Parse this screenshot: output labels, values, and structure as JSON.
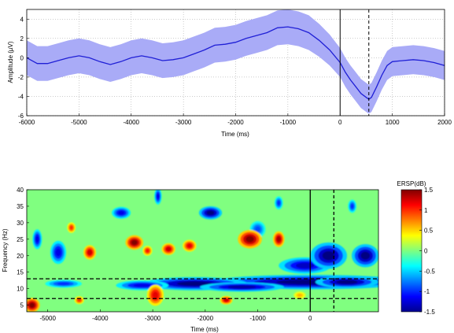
{
  "chart_data": [
    {
      "type": "line",
      "title": "",
      "xlabel": "Time (ms)",
      "ylabel": "Amplitude (µV)",
      "xlim": [
        -6000,
        2000
      ],
      "ylim": [
        -6,
        5
      ],
      "xticks": [
        -6000,
        -5000,
        -4000,
        -3000,
        -2000,
        -1000,
        0,
        1000,
        2000
      ],
      "yticks": [
        -6,
        -4,
        -2,
        0,
        2,
        4
      ],
      "grid": true,
      "series": [
        {
          "x": [
            -6000,
            -5800,
            -5600,
            -5400,
            -5200,
            -5000,
            -4800,
            -4600,
            -4400,
            -4200,
            -4000,
            -3800,
            -3600,
            -3400,
            -3200,
            -3000,
            -2800,
            -2600,
            -2400,
            -2200,
            -2000,
            -1800,
            -1600,
            -1400,
            -1200,
            -1000,
            -800,
            -600,
            -400,
            -200,
            0,
            100,
            200,
            300,
            400,
            500,
            550,
            600,
            700,
            800,
            900,
            1000,
            1200,
            1400,
            1600,
            1800,
            2000
          ],
          "mean": [
            0,
            -0.6,
            -0.6,
            -0.3,
            0,
            0.2,
            0,
            -0.4,
            -0.7,
            -0.4,
            0,
            0.2,
            0,
            -0.3,
            -0.2,
            0,
            0.4,
            0.8,
            1.3,
            1.4,
            1.6,
            2,
            2.3,
            2.6,
            3.1,
            3.2,
            3,
            2.6,
            1.8,
            0.8,
            -0.5,
            -1.5,
            -2.3,
            -3,
            -3.7,
            -4.1,
            -4.3,
            -4.1,
            -3,
            -1.8,
            -0.8,
            -0.4,
            -0.3,
            -0.2,
            -0.3,
            -0.5,
            -0.8
          ],
          "halfwidth": [
            1.8,
            1.8,
            1.8,
            1.8,
            1.8,
            1.8,
            1.8,
            1.8,
            1.8,
            1.8,
            1.8,
            1.8,
            1.8,
            1.8,
            1.8,
            1.8,
            1.8,
            1.8,
            1.8,
            1.8,
            1.8,
            1.8,
            1.8,
            1.8,
            1.8,
            1.8,
            1.8,
            1.8,
            1.7,
            1.6,
            1.5,
            1.5,
            1.5,
            1.5,
            1.5,
            1.5,
            1.5,
            1.5,
            1.5,
            1.5,
            1.5,
            1.5,
            1.5,
            1.5,
            1.5,
            1.5,
            1.5
          ]
        }
      ],
      "vlines": [
        {
          "x": 0,
          "style": "solid"
        },
        {
          "x": 550,
          "style": "dashed"
        }
      ],
      "colors": {
        "line": "#1f1fd6",
        "band": "#a9abf7"
      }
    },
    {
      "type": "heatmap",
      "title": "",
      "xlabel": "Time (ms)",
      "ylabel": "Frequency (Hz)",
      "xlim": [
        -5400,
        1300
      ],
      "ylim": [
        3,
        40
      ],
      "xticks": [
        -5000,
        -4000,
        -3000,
        -2000,
        -1000,
        0
      ],
      "yticks": [
        5,
        10,
        15,
        20,
        25,
        30,
        35,
        40
      ],
      "background_value": 0,
      "colorbar": {
        "label": "ERSP(dB)",
        "min": -1.5,
        "max": 1.5,
        "ticks": [
          -1.5,
          -1,
          -0.5,
          0,
          0.5,
          1,
          1.5
        ]
      },
      "hlines": [
        {
          "y": 13,
          "style": "dashed"
        },
        {
          "y": 7,
          "style": "dashed"
        }
      ],
      "vlines": [
        {
          "x": 0,
          "style": "solid"
        },
        {
          "x": 450,
          "style": "dashed"
        }
      ],
      "blobs": [
        {
          "x": 0,
          "y": 12,
          "rx": 1900,
          "ry": 2.2,
          "v": -1.5
        },
        {
          "x": -2200,
          "y": 11.5,
          "rx": 1000,
          "ry": 2,
          "v": -1.5
        },
        {
          "x": -1300,
          "y": 10.5,
          "rx": 800,
          "ry": 1.4,
          "v": -1.4
        },
        {
          "x": 700,
          "y": 12,
          "rx": 600,
          "ry": 1.8,
          "v": -1.5
        },
        {
          "x": -100,
          "y": 17,
          "rx": 500,
          "ry": 2.5,
          "v": -1.3
        },
        {
          "x": 350,
          "y": 20,
          "rx": 350,
          "ry": 4,
          "v": -1.5
        },
        {
          "x": 1050,
          "y": 20,
          "rx": 260,
          "ry": 3.5,
          "v": -1.5
        },
        {
          "x": -3200,
          "y": 11,
          "rx": 500,
          "ry": 1.5,
          "v": -1.2
        },
        {
          "x": -4700,
          "y": 11.5,
          "rx": 350,
          "ry": 1.2,
          "v": -1.0
        },
        {
          "x": -1900,
          "y": 33,
          "rx": 220,
          "ry": 2,
          "v": -1.5
        },
        {
          "x": -3600,
          "y": 33,
          "rx": 180,
          "ry": 1.8,
          "v": -1.2
        },
        {
          "x": -4800,
          "y": 21,
          "rx": 150,
          "ry": 3.5,
          "v": -1.2
        },
        {
          "x": -5200,
          "y": 25,
          "rx": 90,
          "ry": 3,
          "v": -1.2
        },
        {
          "x": -2900,
          "y": 38,
          "rx": 70,
          "ry": 2.5,
          "v": -1.2
        },
        {
          "x": -600,
          "y": 36,
          "rx": 80,
          "ry": 2,
          "v": -1.0
        },
        {
          "x": 800,
          "y": 35,
          "rx": 80,
          "ry": 2,
          "v": -1.0
        },
        {
          "x": -1000,
          "y": 28,
          "rx": 150,
          "ry": 2.5,
          "v": -0.9
        },
        {
          "x": -3350,
          "y": 24,
          "rx": 170,
          "ry": 2.2,
          "v": 1.5
        },
        {
          "x": -1150,
          "y": 25,
          "rx": 230,
          "ry": 2.8,
          "v": 1.5
        },
        {
          "x": -600,
          "y": 25,
          "rx": 110,
          "ry": 2.4,
          "v": 1.4
        },
        {
          "x": -2700,
          "y": 22,
          "rx": 130,
          "ry": 1.8,
          "v": 1.3
        },
        {
          "x": -2300,
          "y": 23,
          "rx": 130,
          "ry": 1.8,
          "v": 1.2
        },
        {
          "x": -4200,
          "y": 21,
          "rx": 120,
          "ry": 2.2,
          "v": 1.3
        },
        {
          "x": -1600,
          "y": 6.5,
          "rx": 120,
          "ry": 1.3,
          "v": 1.3
        },
        {
          "x": -2950,
          "y": 8,
          "rx": 160,
          "ry": 3.2,
          "v": 1.2
        },
        {
          "x": -5300,
          "y": 5,
          "rx": 150,
          "ry": 2.2,
          "v": 1.5
        },
        {
          "x": -4400,
          "y": 6.5,
          "rx": 90,
          "ry": 1.2,
          "v": 1.0
        },
        {
          "x": -4550,
          "y": 28.5,
          "rx": 80,
          "ry": 1.6,
          "v": 1.0
        },
        {
          "x": -3100,
          "y": 21.5,
          "rx": 90,
          "ry": 1.5,
          "v": 1.1
        },
        {
          "x": -200,
          "y": 8,
          "rx": 120,
          "ry": 1.2,
          "v": 0.6
        }
      ]
    }
  ]
}
